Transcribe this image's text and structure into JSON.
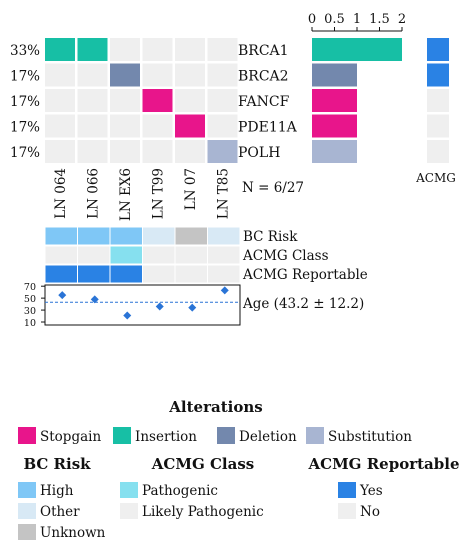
{
  "chart_data": {
    "type": "heatmap",
    "title": "",
    "samples": [
      "LN 064",
      "LN 066",
      "LN EX6",
      "LN T99",
      "LN 07",
      "LN T85"
    ],
    "genes": [
      {
        "name": "BRCA1",
        "pct": "33%",
        "bar": 2,
        "acmg": "Yes",
        "alterations": [
          "Insertion",
          "Insertion",
          "",
          "",
          "",
          ""
        ]
      },
      {
        "name": "BRCA2",
        "pct": "17%",
        "bar": 1,
        "acmg": "Yes",
        "alterations": [
          "",
          "",
          "Deletion",
          "",
          "",
          ""
        ]
      },
      {
        "name": "FANCF",
        "pct": "17%",
        "bar": 1,
        "acmg": "No",
        "alterations": [
          "",
          "",
          "",
          "Stopgain",
          "",
          ""
        ]
      },
      {
        "name": "PDE11A",
        "pct": "17%",
        "bar": 1,
        "acmg": "No",
        "alterations": [
          "",
          "",
          "",
          "",
          "Stopgain",
          ""
        ]
      },
      {
        "name": "POLH",
        "pct": "17%",
        "bar": 1,
        "acmg": "No",
        "alterations": [
          "",
          "",
          "",
          "",
          "",
          "Substitution"
        ]
      }
    ],
    "bar_axis": {
      "ticks": [
        "0",
        "0.5",
        "1",
        "1.5",
        "2"
      ],
      "range": [
        0,
        2
      ]
    },
    "acmg_column_label": "ACMG",
    "n_label": "N = 6/27",
    "tracks": {
      "bc_risk": {
        "label": "BC Risk",
        "values": [
          "High",
          "High",
          "High",
          "Other",
          "Unknown",
          "Other"
        ]
      },
      "acmg_class": {
        "label": "ACMG Class",
        "values": [
          "",
          "",
          "Pathogenic",
          "",
          "",
          ""
        ]
      },
      "acmg_reportable": {
        "label": "ACMG Reportable",
        "values": [
          "Yes",
          "Yes",
          "Yes",
          "No",
          "No",
          "No"
        ]
      }
    },
    "age": {
      "label": "Age (43.2 ± 12.2)",
      "values": [
        55,
        48,
        21,
        36,
        34,
        63
      ],
      "mean": 43.2,
      "ylim": [
        5,
        72
      ],
      "ticks": [
        70,
        50,
        30,
        10
      ]
    }
  },
  "legends": {
    "alterations": {
      "title": "Alterations",
      "items": [
        {
          "label": "Stopgain",
          "color": "#e8158b"
        },
        {
          "label": "Insertion",
          "color": "#17bfa5"
        },
        {
          "label": "Deletion",
          "color": "#7388ad"
        },
        {
          "label": "Substitution",
          "color": "#a8b5d2"
        }
      ]
    },
    "bc_risk": {
      "title": "BC Risk",
      "items": [
        {
          "label": "High",
          "color": "#7fc7f6"
        },
        {
          "label": "Other",
          "color": "#d8e9f5"
        },
        {
          "label": "Unknown",
          "color": "#c4c4c4"
        }
      ]
    },
    "acmg_class": {
      "title": "ACMG Class",
      "items": [
        {
          "label": "Pathogenic",
          "color": "#86e0ef"
        },
        {
          "label": "Likely Pathogenic",
          "color": "#efefef"
        }
      ]
    },
    "acmg_reportable": {
      "title": "ACMG Reportable",
      "items": [
        {
          "label": "Yes",
          "color": "#2a82e4"
        },
        {
          "label": "No",
          "color": "#efefef"
        }
      ]
    }
  },
  "colors": {
    "empty_cell": "#efefef",
    "bar_fill": {
      "Insertion": "#17bfa5",
      "Deletion": "#7388ad",
      "Stopgain": "#e8158b",
      "Substitution": "#a8b5d2"
    },
    "age_point": "#2a74d6",
    "mean_line": "#2a74d6"
  }
}
